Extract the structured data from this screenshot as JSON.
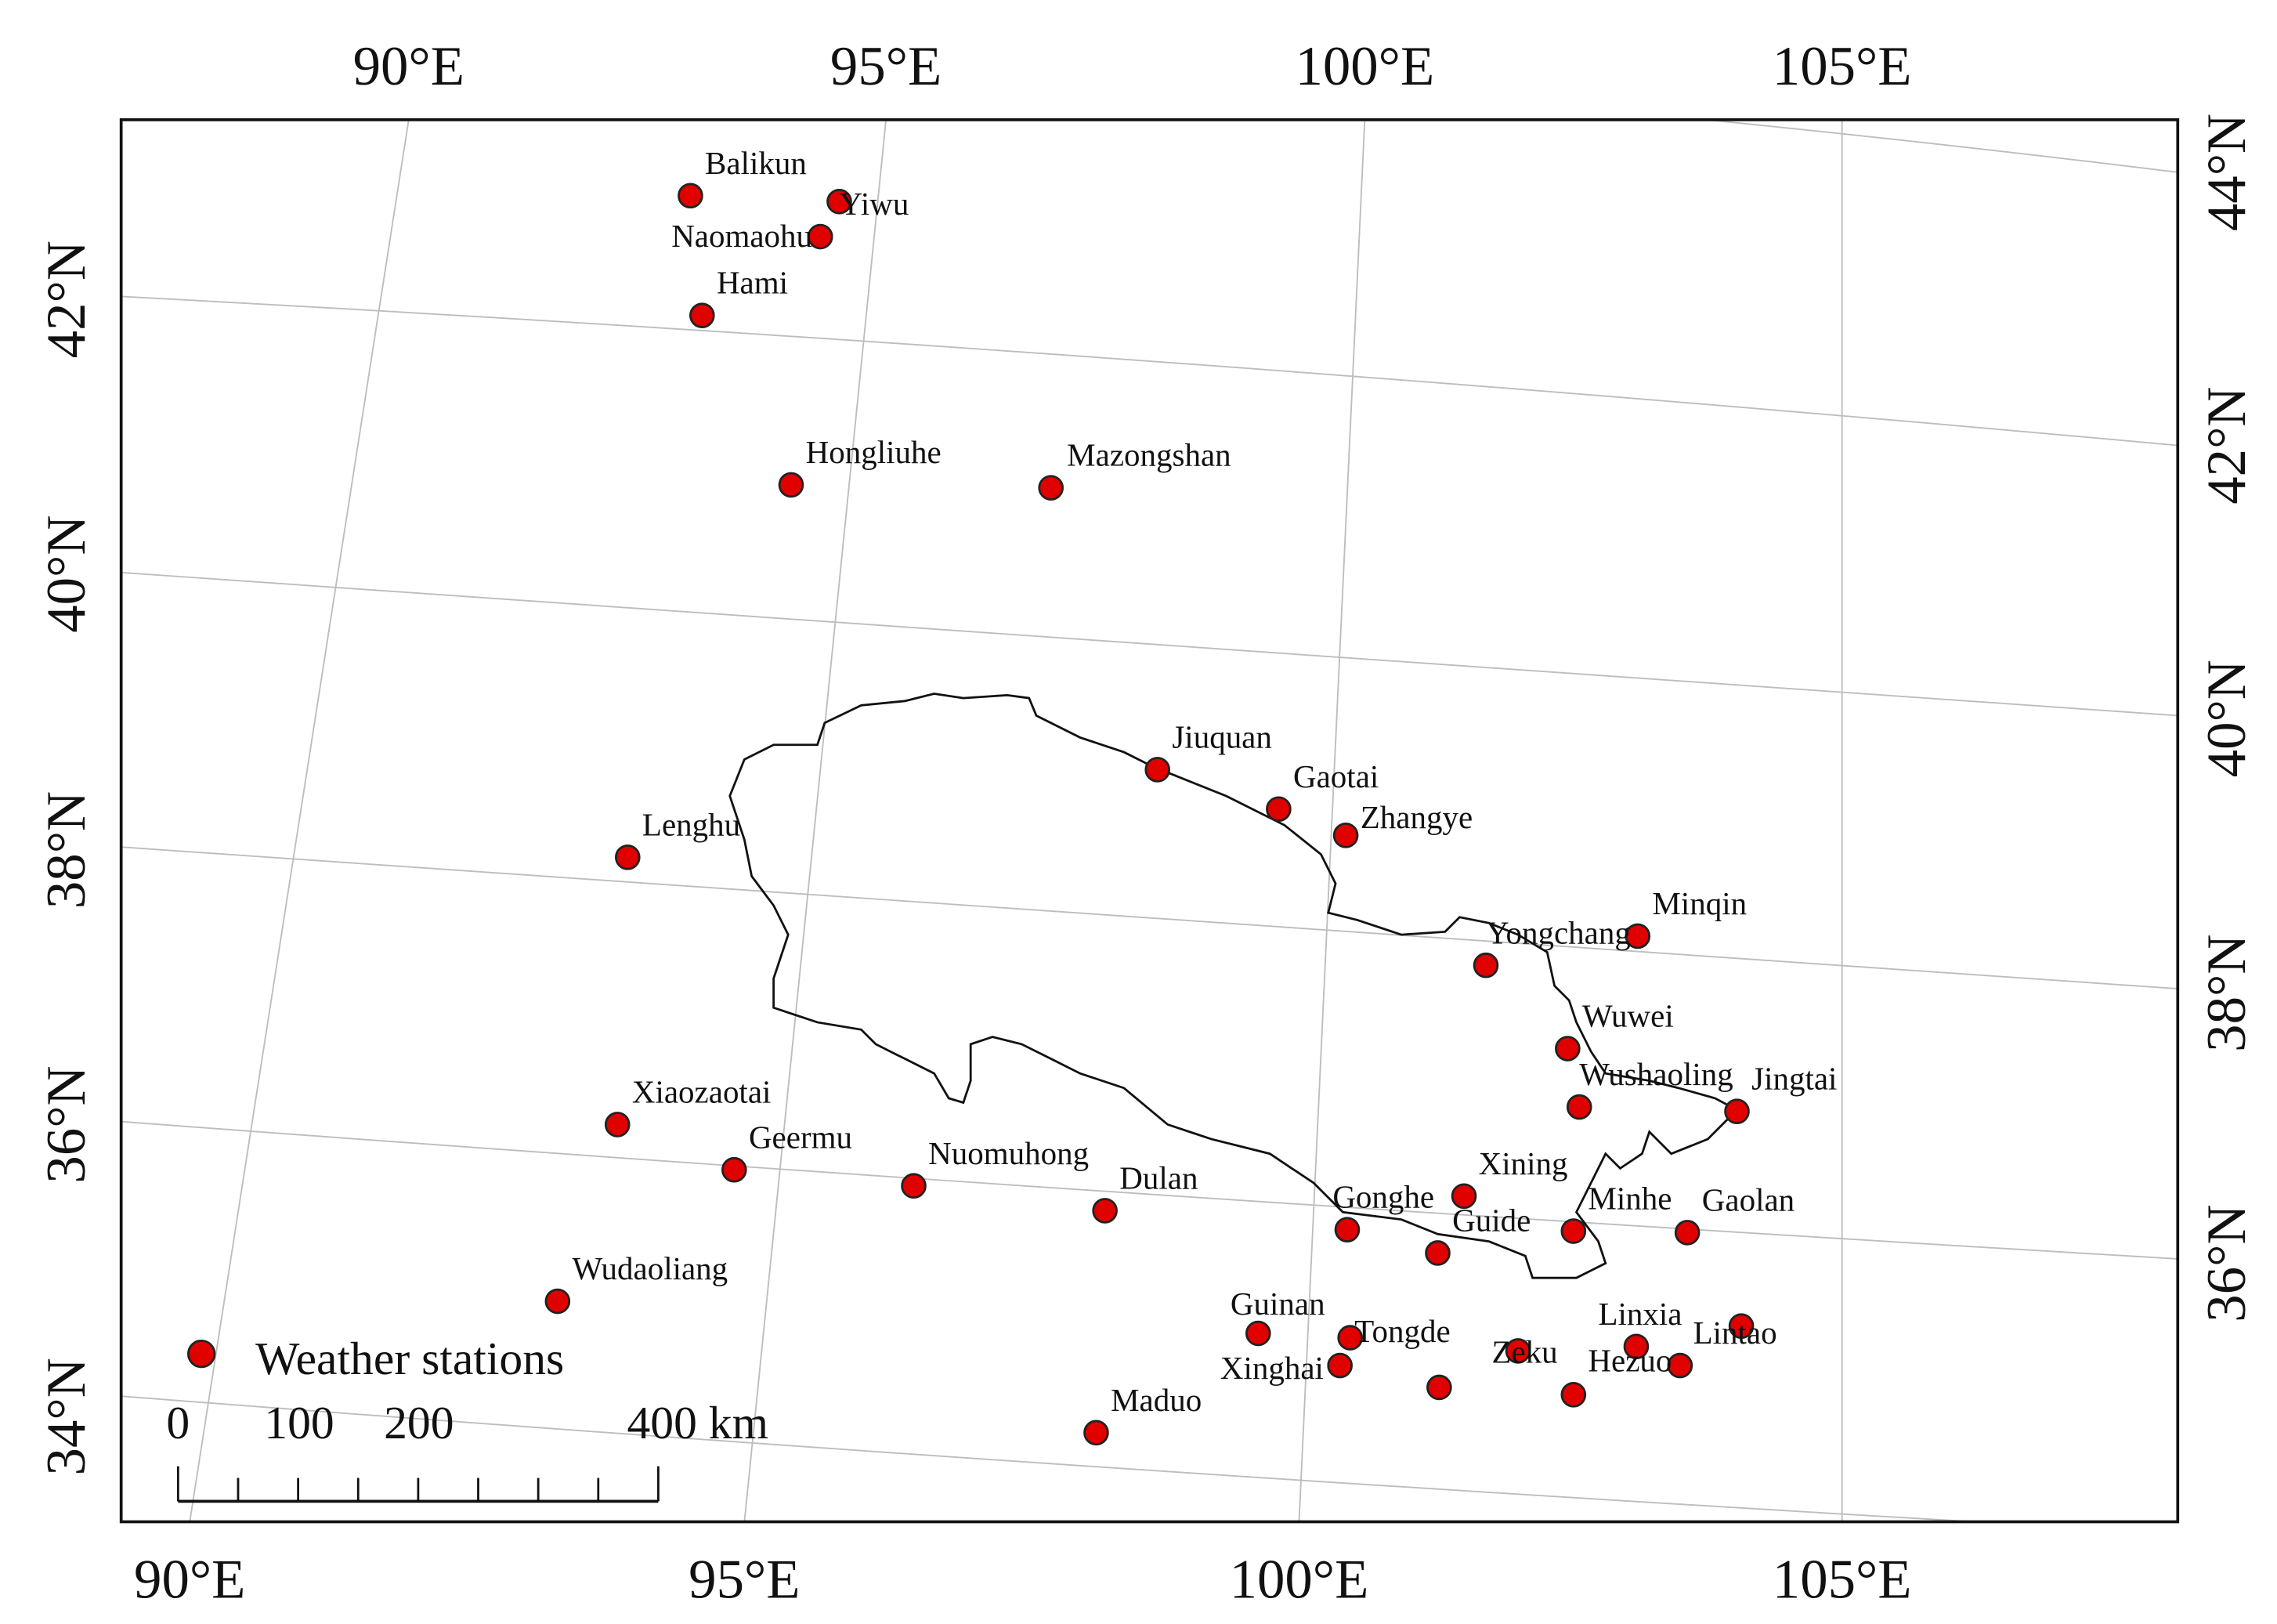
{
  "map": {
    "top_labels": [
      "90°E",
      "95°E",
      "100°E",
      "105°E"
    ],
    "bottom_labels": [
      "90°E",
      "95°E",
      "100°E",
      "105°E"
    ],
    "left_labels": [
      "34°N",
      "36°N",
      "38°N",
      "40°N",
      "42°N"
    ],
    "right_labels": [
      "44°N",
      "42°N",
      "40°N",
      "38°N",
      "36°N"
    ],
    "stations": [
      "Balikun",
      "Yiwu",
      "Naomaohu",
      "Hami",
      "Hongliuhe",
      "Mazongshan",
      "Jiuquan",
      "Gaotai",
      "Zhangye",
      "Lenghu",
      "Minqin",
      "Yongchang",
      "Wuwei",
      "Wushaoling",
      "Jingtai",
      "Xiaozaotai",
      "Geermu",
      "Nuomuhong",
      "Dulan",
      "Xining",
      "Gonghe",
      "Guide",
      "Minhe",
      "Gaolan",
      "Wudaoliang",
      "Guinan",
      "Tongde",
      "Xinghai",
      "Zeku",
      "Linxia",
      "Hezuo",
      "Lintao",
      "Maduo"
    ],
    "legend": "Weather stations",
    "scale_labels": [
      "0",
      "100",
      "200",
      "400 km"
    ]
  }
}
